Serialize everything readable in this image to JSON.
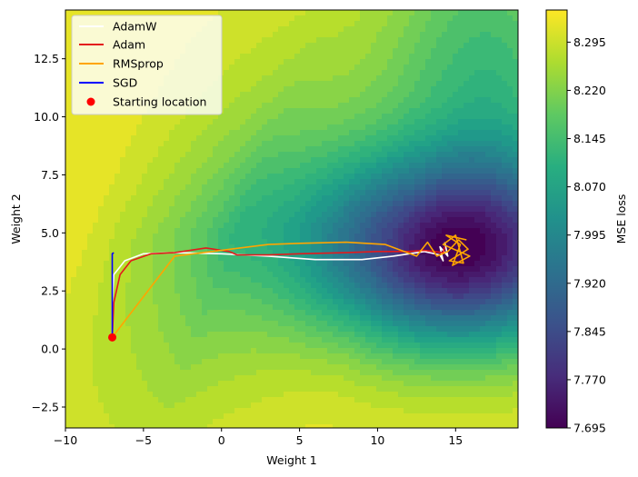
{
  "chart_data": {
    "type": "contour",
    "xlabel": "Weight 1",
    "ylabel": "Weight 2",
    "xlim": [
      -10,
      19
    ],
    "ylim": [
      -3.4,
      14.6
    ],
    "x_ticks": [
      -10,
      -5,
      0,
      5,
      10,
      15
    ],
    "x_tick_labels": [
      "−10",
      "−5",
      "0",
      "5",
      "10",
      "15"
    ],
    "y_ticks": [
      -2.5,
      0.0,
      2.5,
      5.0,
      7.5,
      10.0,
      12.5
    ],
    "y_tick_labels": [
      "−2.5",
      "0.0",
      "2.5",
      "5.0",
      "7.5",
      "10.0",
      "12.5"
    ],
    "colorbar": {
      "label": "MSE loss",
      "colormap": "viridis",
      "min": 7.695,
      "max": 8.345,
      "ticks": [
        7.695,
        7.77,
        7.845,
        7.92,
        7.995,
        8.07,
        8.145,
        8.22,
        8.295
      ],
      "tick_labels": [
        "7.695",
        "7.770",
        "7.845",
        "7.920",
        "7.995",
        "8.070",
        "8.145",
        "8.220",
        "8.295"
      ]
    },
    "legend_position": "upper-left",
    "series": [
      {
        "name": "AdamW",
        "color": "#ffffff",
        "points": [
          [
            -7,
            0.5
          ],
          [
            -7,
            2.0
          ],
          [
            -6.9,
            3.2
          ],
          [
            -6.2,
            3.8
          ],
          [
            -5,
            4.1
          ],
          [
            -3,
            4.15
          ],
          [
            0,
            4.1
          ],
          [
            3,
            4.0
          ],
          [
            6,
            3.85
          ],
          [
            9,
            3.85
          ],
          [
            11,
            4.0
          ],
          [
            13,
            4.2
          ],
          [
            14,
            4.05
          ],
          [
            14.2,
            3.8
          ],
          [
            14,
            4.4
          ],
          [
            14.5,
            4.0
          ],
          [
            14.3,
            4.6
          ]
        ]
      },
      {
        "name": "Adam",
        "color": "#e31a1c",
        "points": [
          [
            -7,
            0.5
          ],
          [
            -6.9,
            2.0
          ],
          [
            -6.5,
            3.2
          ],
          [
            -5.8,
            3.8
          ],
          [
            -4.5,
            4.1
          ],
          [
            -3,
            4.15
          ],
          [
            -1,
            4.35
          ],
          [
            0.5,
            4.2
          ],
          [
            1,
            4.05
          ],
          [
            3,
            4.05
          ],
          [
            5,
            4.1
          ],
          [
            8,
            4.15
          ],
          [
            10,
            4.2
          ],
          [
            12,
            4.2
          ],
          [
            13,
            4.25
          ],
          [
            14.2,
            4.15
          ],
          [
            14.3,
            4.4
          ]
        ]
      },
      {
        "name": "RMSprop",
        "color": "#ffa500",
        "points": [
          [
            -7,
            0.5
          ],
          [
            -3,
            4.0
          ],
          [
            0,
            4.25
          ],
          [
            3,
            4.5
          ],
          [
            5,
            4.55
          ],
          [
            8,
            4.6
          ],
          [
            10.5,
            4.5
          ],
          [
            12.5,
            4.0
          ],
          [
            13.2,
            4.6
          ],
          [
            13.8,
            4.0
          ],
          [
            14.5,
            4.2
          ],
          [
            15.2,
            4.7
          ],
          [
            15.8,
            4.3
          ],
          [
            14.6,
            3.8
          ],
          [
            15.5,
            3.7
          ],
          [
            15.0,
            4.9
          ],
          [
            14.2,
            4.5
          ],
          [
            15.9,
            4.0
          ],
          [
            14.8,
            3.6
          ],
          [
            15.3,
            4.5
          ],
          [
            14.4,
            4.9
          ],
          [
            15.7,
            4.7
          ]
        ]
      },
      {
        "name": "SGD",
        "color": "#0000ff",
        "points": [
          [
            -7,
            0.5
          ],
          [
            -7,
            2.0
          ],
          [
            -7,
            3.5
          ],
          [
            -7,
            4.1
          ],
          [
            -6.9,
            4.15
          ]
        ]
      }
    ],
    "starting_location": {
      "name": "Starting location",
      "color": "#ff0000",
      "x": -7,
      "y": 0.5
    }
  }
}
